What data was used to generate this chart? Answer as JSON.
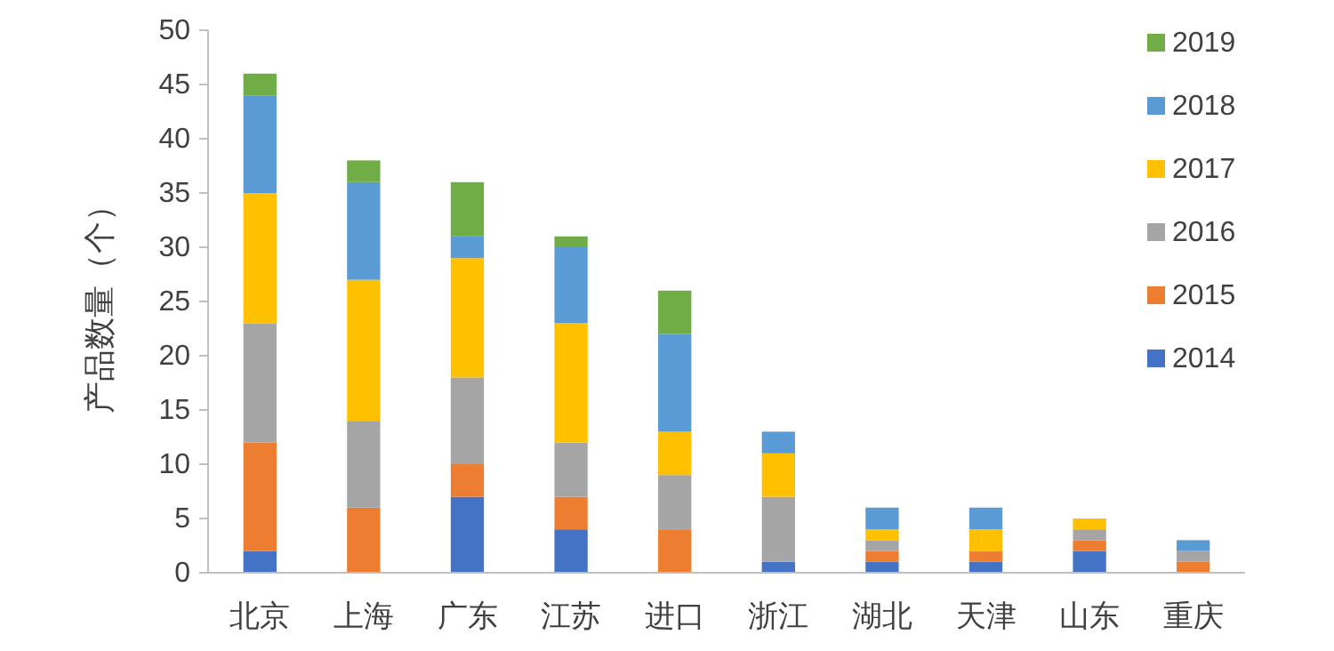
{
  "chart_data": {
    "type": "bar",
    "stacked": true,
    "ylabel": "产品数量（个）",
    "categories": [
      "北京",
      "上海",
      "广东",
      "江苏",
      "进口",
      "浙江",
      "湖北",
      "天津",
      "山东",
      "重庆"
    ],
    "series": [
      {
        "name": "2014",
        "color": "#4472c4",
        "values": [
          2,
          0,
          7,
          4,
          0,
          1,
          1,
          1,
          2,
          0
        ]
      },
      {
        "name": "2015",
        "color": "#ed7d31",
        "values": [
          10,
          6,
          3,
          3,
          4,
          0,
          1,
          1,
          1,
          1
        ]
      },
      {
        "name": "2016",
        "color": "#a5a5a5",
        "values": [
          11,
          8,
          8,
          5,
          5,
          6,
          1,
          0,
          1,
          1
        ]
      },
      {
        "name": "2017",
        "color": "#ffc000",
        "values": [
          12,
          13,
          11,
          11,
          4,
          4,
          1,
          2,
          1,
          0
        ]
      },
      {
        "name": "2018",
        "color": "#5b9bd5",
        "values": [
          9,
          9,
          2,
          7,
          9,
          2,
          2,
          2,
          0,
          1
        ]
      },
      {
        "name": "2019",
        "color": "#70ad47",
        "values": [
          2,
          2,
          5,
          1,
          4,
          0,
          0,
          0,
          0,
          0
        ]
      }
    ],
    "ylim": [
      0,
      50
    ],
    "yticks": [
      0,
      5,
      10,
      15,
      20,
      25,
      30,
      35,
      40,
      45,
      50
    ],
    "grid": false,
    "legend": "top right"
  }
}
